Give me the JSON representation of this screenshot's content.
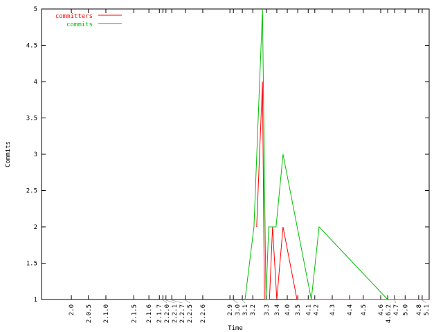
{
  "chart_data": {
    "type": "line",
    "title": "",
    "xlabel": "Time",
    "ylabel": "Commits",
    "ylim": [
      1,
      5
    ],
    "xlim": [
      0,
      100
    ],
    "grid": false,
    "legend_position": "top-left",
    "yticks": [
      {
        "v": 1,
        "label": "1"
      },
      {
        "v": 1.5,
        "label": "1.5"
      },
      {
        "v": 2,
        "label": "2"
      },
      {
        "v": 2.5,
        "label": "2.5"
      },
      {
        "v": 3,
        "label": "3"
      },
      {
        "v": 3.5,
        "label": "3.5"
      },
      {
        "v": 4,
        "label": "4"
      },
      {
        "v": 4.5,
        "label": "4.5"
      },
      {
        "v": 5,
        "label": "5"
      }
    ],
    "xticks": [
      {
        "v": 7.7,
        "label": "2.0"
      },
      {
        "v": 12.1,
        "label": "2.0.5"
      },
      {
        "v": 16.6,
        "label": "2.1.0"
      },
      {
        "v": 23.8,
        "label": "2.1.5"
      },
      {
        "v": 27.7,
        "label": "2.1.6"
      },
      {
        "v": 30.4,
        "label": "2.1.7"
      },
      {
        "v": 31.3,
        "label": "2.2.0"
      },
      {
        "v": 32.1,
        "label": "2.2.1"
      },
      {
        "v": 33.6,
        "label": "2.2.7"
      },
      {
        "v": 37.1,
        "label": "2.2.5"
      },
      {
        "v": 41.6,
        "label": "2.2.6"
      },
      {
        "v": 48.6,
        "label": "2.9"
      },
      {
        "v": 49.5,
        "label": "3.0"
      },
      {
        "v": 51.8,
        "label": "3.1"
      },
      {
        "v": 54.5,
        "label": "3.2"
      },
      {
        "v": 58.0,
        "label": "3.3"
      },
      {
        "v": 60.7,
        "label": "3.4"
      },
      {
        "v": 63.4,
        "label": "4.0"
      },
      {
        "v": 66.1,
        "label": "3.5"
      },
      {
        "v": 68.8,
        "label": "4.1"
      },
      {
        "v": 70.5,
        "label": "4.2"
      },
      {
        "v": 75.0,
        "label": "4.3"
      },
      {
        "v": 79.5,
        "label": "4.4"
      },
      {
        "v": 83.0,
        "label": "4.5"
      },
      {
        "v": 87.5,
        "label": "4.6"
      },
      {
        "v": 89.3,
        "label": "4.6.2"
      },
      {
        "v": 91.1,
        "label": "4.7"
      },
      {
        "v": 93.8,
        "label": "5.0"
      },
      {
        "v": 97.3,
        "label": "4.8"
      },
      {
        "v": 98.2,
        "label": "5.1"
      }
    ],
    "series": [
      {
        "name": "committers",
        "color": "#ff0000",
        "x": [
          55.5,
          57.0,
          57.5,
          58.8,
          59.6,
          60.7,
          62.3,
          65.9,
          100
        ],
        "y": [
          2,
          4,
          1,
          1,
          2,
          1,
          2,
          1,
          1
        ]
      },
      {
        "name": "commits",
        "color": "#00c000",
        "x": [
          52.5,
          54.8,
          57.0,
          57.9,
          58.6,
          60.5,
          62.3,
          69.6,
          71.6,
          89.3
        ],
        "y": [
          1,
          2,
          5,
          1,
          2,
          2,
          3,
          1,
          2,
          1
        ]
      }
    ]
  }
}
